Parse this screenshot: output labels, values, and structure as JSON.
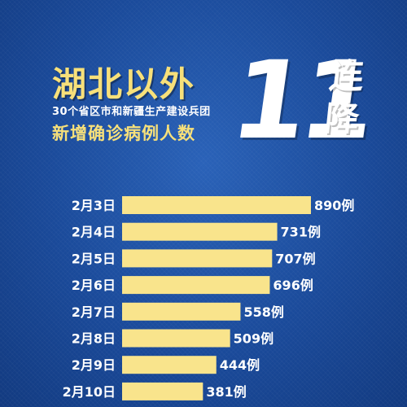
{
  "header": {
    "title": "湖北以外",
    "subtitle": "30个省区市和新疆生产建设兵团",
    "subtitle2": "新增确诊病例人数",
    "big_number": "11",
    "lian": "连",
    "jiang": "降"
  },
  "colors": {
    "background": "#1a4a9a",
    "bar": "#f9e48c",
    "title_yellow": "#f7e07a",
    "text": "#ffffff"
  },
  "chart_data": {
    "type": "bar",
    "orientation": "horizontal",
    "categories": [
      "2月3日",
      "2月4日",
      "2月5日",
      "2月6日",
      "2月7日",
      "2月8日",
      "2月9日",
      "2月10日"
    ],
    "values": [
      890,
      731,
      707,
      696,
      558,
      509,
      444,
      381
    ],
    "value_labels": [
      "890例",
      "731例",
      "707例",
      "696例",
      "558例",
      "509例",
      "444例",
      "381例"
    ],
    "xlim": [
      0,
      890
    ]
  }
}
